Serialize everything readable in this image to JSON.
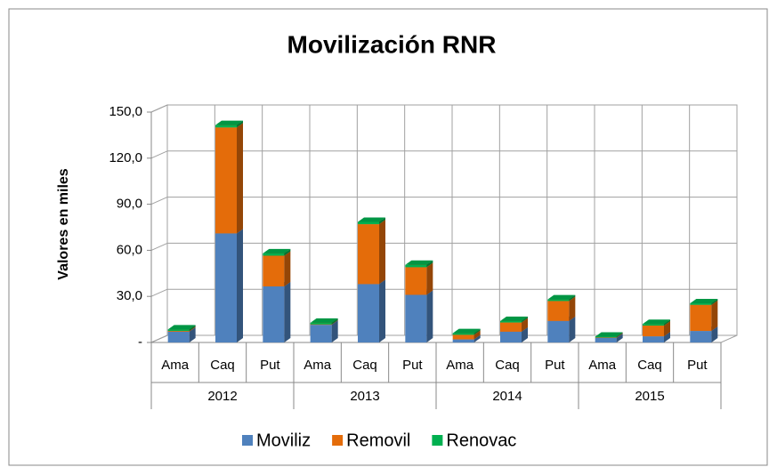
{
  "chart_data": {
    "type": "bar3d_stacked",
    "title": "Movilización RNR",
    "y_label": "Valores en miles",
    "categories": [
      "Ama",
      "Caq",
      "Put",
      "Ama",
      "Caq",
      "Put",
      "Ama",
      "Caq",
      "Put",
      "Ama",
      "Caq",
      "Put"
    ],
    "groups": [
      "2012",
      "2013",
      "2014",
      "2015"
    ],
    "series": [
      {
        "name": "Moviliz",
        "color": "#4f81bd",
        "values": [
          7,
          71,
          36.5,
          11.5,
          38,
          31,
          2,
          7,
          14,
          3,
          4,
          7.5
        ]
      },
      {
        "name": "Removil",
        "color": "#e46c0a",
        "values": [
          0.5,
          69,
          20,
          0.3,
          39,
          18,
          3,
          6,
          13,
          0.3,
          7,
          17
        ]
      },
      {
        "name": "Renovac",
        "color": "#00b050",
        "values": [
          1,
          1.5,
          1.5,
          1,
          1.5,
          1.5,
          1,
          1,
          1,
          0.5,
          1,
          1
        ]
      }
    ],
    "ylim": [
      0,
      150
    ],
    "yticks": [
      {
        "value": 0,
        "label": "-"
      },
      {
        "value": 30,
        "label": "30,0"
      },
      {
        "value": 60,
        "label": "60,0"
      },
      {
        "value": 90,
        "label": "90,0"
      },
      {
        "value": 120,
        "label": "120,0"
      },
      {
        "value": 150,
        "label": "150,0"
      }
    ],
    "grid": true,
    "legend": "bottom"
  }
}
